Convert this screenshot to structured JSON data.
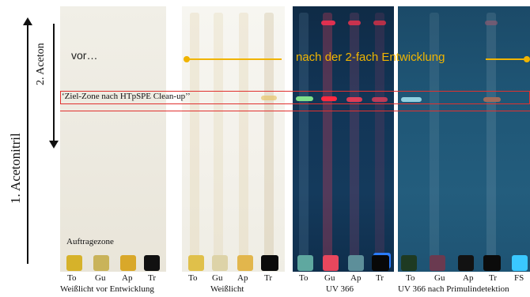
{
  "axes": {
    "first_development": "1. Acetonitril",
    "second_development": "2. Aceton"
  },
  "annotations": {
    "before": "vor…",
    "after": "nach der 2-fach Entwicklung",
    "target_zone": "‘Ziel-Zone nach HTpSPE Clean-up’’",
    "application_zone": "Auftragezone"
  },
  "plates": [
    {
      "caption": "Weißlicht vor Entwicklung",
      "lanes": [
        "To",
        "Gu",
        "Ap",
        "Tr"
      ]
    },
    {
      "caption": "Weißlicht",
      "lanes": [
        "To",
        "Gu",
        "Ap",
        "Tr"
      ]
    },
    {
      "caption": "UV 366",
      "lanes": [
        "To",
        "Gu",
        "Ap",
        "Tr"
      ]
    },
    {
      "caption": "UV 366 nach Primulindetektion",
      "lanes": [
        "To",
        "Gu",
        "Ap",
        "Tr",
        "FS"
      ]
    }
  ],
  "colors": {
    "annotation_accent": "#f0b400",
    "zone_frame": "#e0312f"
  }
}
